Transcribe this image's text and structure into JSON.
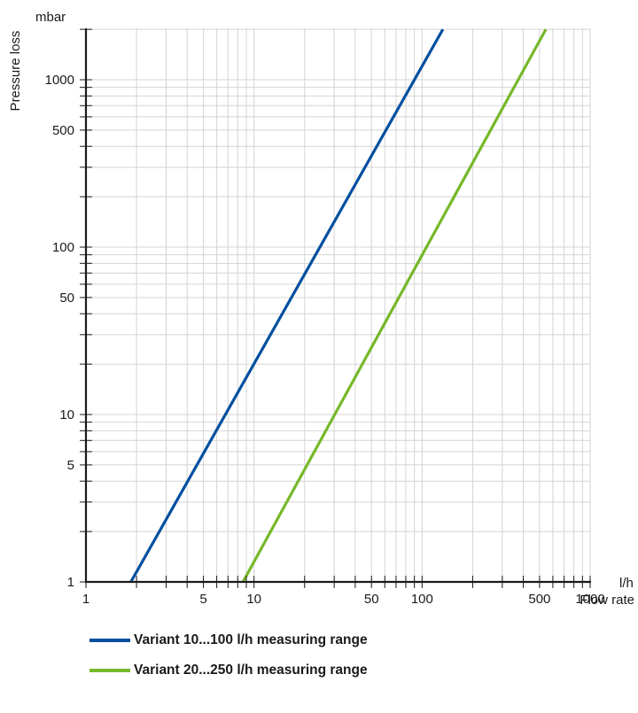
{
  "chart_data": {
    "type": "line",
    "x_scale": "log",
    "y_scale": "log",
    "xlim": [
      1,
      1000
    ],
    "ylim": [
      1,
      2000
    ],
    "x_unit": "l/h",
    "y_unit": "mbar",
    "xlabel": "Flow rate",
    "ylabel": "Pressure loss",
    "x_ticks": [
      "1",
      "5",
      "10",
      "50",
      "100",
      "500",
      "1000"
    ],
    "y_ticks": [
      "1",
      "5",
      "10",
      "50",
      "100",
      "500",
      "1000"
    ],
    "grid": true,
    "legend_position": "bottom",
    "series": [
      {
        "name": "Variant 10...100 l/h measuring range",
        "color": "#004f9f",
        "x": [
          1.85,
          133
        ],
        "y": [
          1,
          2000
        ]
      },
      {
        "name": "Variant 20...250 l/h measuring range",
        "color": "#76b82a",
        "x": [
          8.6,
          545
        ],
        "y": [
          1,
          2000
        ]
      }
    ]
  }
}
